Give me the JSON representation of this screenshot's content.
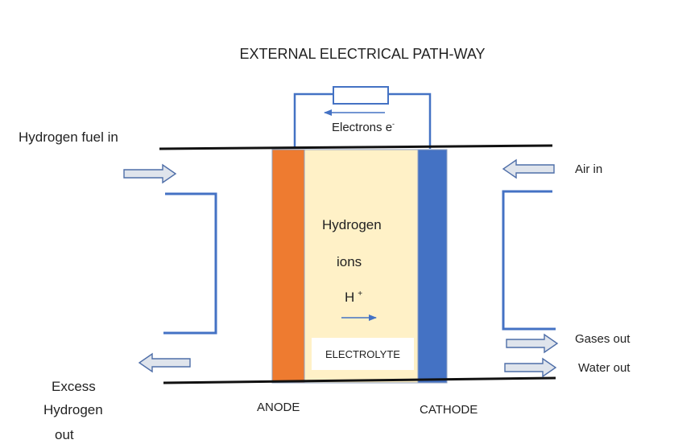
{
  "title": "EXTERNAL ELECTRICAL PATH-WAY",
  "electrons": {
    "label": "Electrons e",
    "superscript": "-"
  },
  "inputs": {
    "hydrogen_in": "Hydrogen fuel in",
    "air_in": "Air in"
  },
  "outputs": {
    "excess_hydrogen": [
      "Excess",
      "Hydrogen",
      "out"
    ],
    "gases_out": "Gases out",
    "water_out": "Water out"
  },
  "cell": {
    "ion_lines": [
      "Hydrogen",
      "ions"
    ],
    "ion_symbol": "H",
    "ion_superscript": "+",
    "electrolyte": "ELECTROLYTE",
    "anode": "ANODE",
    "cathode": "CATHODE"
  },
  "colors": {
    "anode": "#ee7b30",
    "cathode": "#4472c4",
    "electrolyte": "#fff1c7",
    "arrow_fill": "#dfe4ec",
    "arrow_stroke": "#4e6ea8",
    "wire": "#4472c4",
    "plate": "#111111"
  }
}
